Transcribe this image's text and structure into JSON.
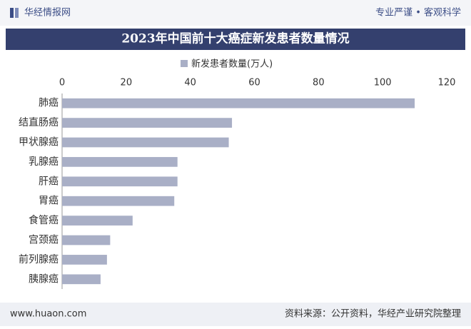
{
  "header": {
    "brand": "华经情报网",
    "slogan": "专业严谨 • 客观科学"
  },
  "chart_data": {
    "type": "bar",
    "orientation": "horizontal",
    "title": "2023年中国前十大癌症新发患者数量情况",
    "categories": [
      "肺癌",
      "结直肠癌",
      "甲状腺癌",
      "乳腺癌",
      "肝癌",
      "胃癌",
      "食管癌",
      "宫颈癌",
      "前列腺癌",
      "胰腺癌"
    ],
    "series": [
      {
        "name": "新发患者数量(万人)",
        "color": "#a9afc6",
        "values": [
          110,
          53,
          52,
          36,
          36,
          35,
          22,
          15,
          14,
          12
        ]
      }
    ],
    "xlim": [
      0,
      120
    ],
    "xticks": [
      0,
      20,
      40,
      60,
      80,
      100,
      120
    ],
    "legend": "top"
  },
  "footer": {
    "website": "www.huaon.com",
    "source": "资料来源：公开资料，华经产业研究院整理"
  }
}
